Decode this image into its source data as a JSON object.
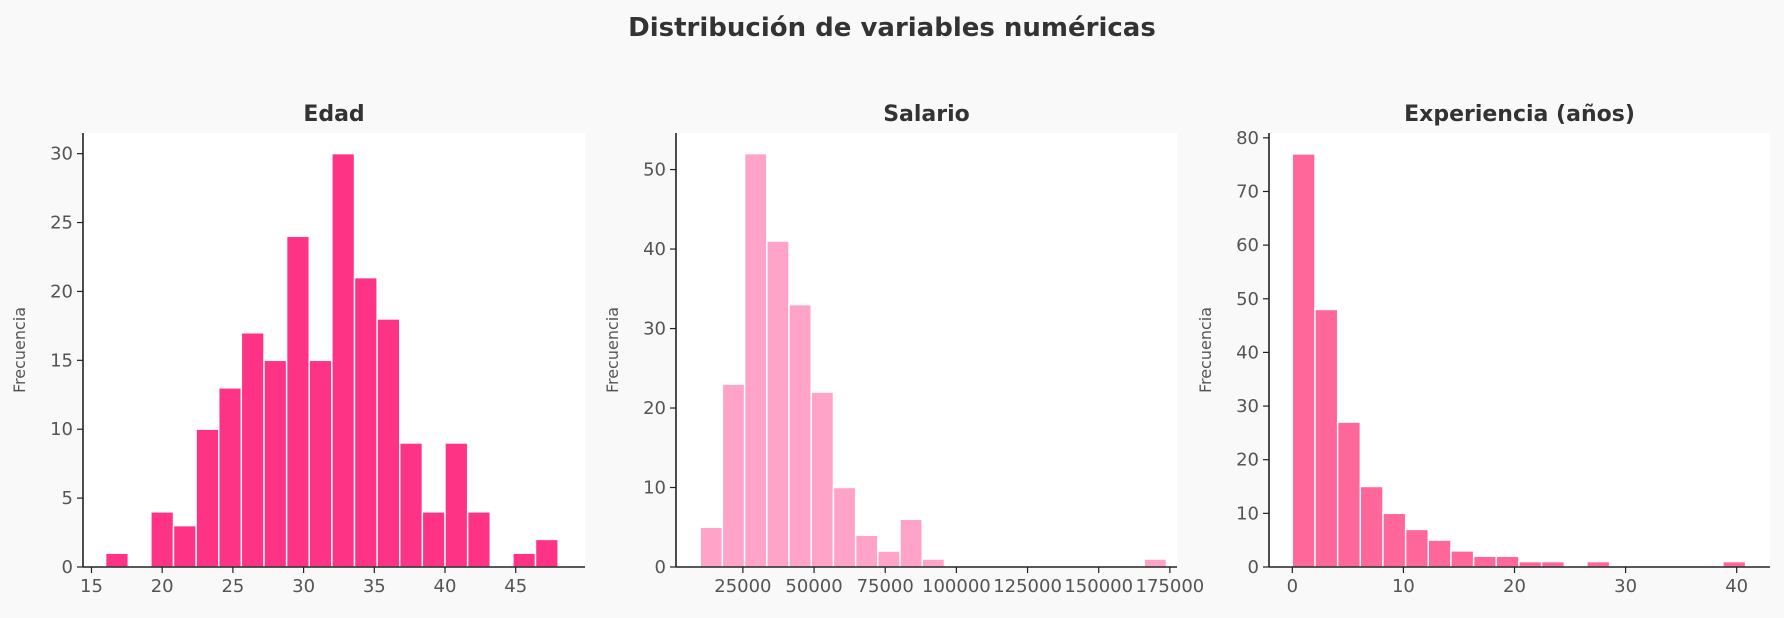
{
  "figure": {
    "title": "Distribución de variables numéricas",
    "background": "#f9f9f9"
  },
  "chart_data": [
    {
      "type": "bar",
      "title": "Edad",
      "xlabel": "",
      "ylabel": "Frecuencia",
      "color": "#ff3385",
      "xlim": [
        14.4,
        49.9
      ],
      "ylim": [
        0,
        31.5
      ],
      "xticks": [
        15,
        20,
        25,
        30,
        35,
        40,
        45
      ],
      "yticks": [
        0,
        5,
        10,
        15,
        20,
        25,
        30
      ],
      "bin_edges": [
        16.0,
        17.6,
        19.2,
        20.8,
        22.4,
        24.0,
        25.6,
        27.2,
        28.8,
        30.4,
        32.0,
        33.6,
        35.2,
        36.8,
        38.4,
        40.0,
        41.6,
        43.2,
        44.8,
        46.4,
        48.0
      ],
      "values": [
        1,
        0,
        4,
        3,
        10,
        13,
        17,
        15,
        24,
        15,
        30,
        21,
        18,
        9,
        4,
        9,
        4,
        0,
        1,
        2
      ]
    },
    {
      "type": "bar",
      "title": "Salario",
      "xlabel": "",
      "ylabel": "Frecuencia",
      "color": "#ffa3c8",
      "xlim": [
        1500,
        177500
      ],
      "ylim": [
        0,
        54.6
      ],
      "xticks": [
        25000,
        50000,
        75000,
        100000,
        125000,
        150000,
        175000
      ],
      "yticks": [
        0,
        10,
        20,
        30,
        40,
        50
      ],
      "bin_edges": [
        10000,
        17800,
        25600,
        33400,
        41200,
        49000,
        56800,
        64600,
        72400,
        80200,
        88000,
        95800,
        103600,
        111400,
        119200,
        127000,
        134800,
        142600,
        150400,
        158200,
        166000,
        173800
      ],
      "values": [
        5,
        23,
        52,
        41,
        33,
        22,
        10,
        4,
        2,
        6,
        1,
        0,
        0,
        0,
        0,
        0,
        0,
        0,
        0,
        0,
        1
      ]
    },
    {
      "type": "bar",
      "title": "Experiencia (años)",
      "xlabel": "",
      "ylabel": "Frecuencia",
      "color": "#ff6699",
      "xlim": [
        -2.1,
        43.0
      ],
      "ylim": [
        0,
        80.9
      ],
      "xticks": [
        0,
        10,
        20,
        30,
        40
      ],
      "yticks": [
        0,
        10,
        20,
        30,
        40,
        50,
        60,
        70,
        80
      ],
      "bin_edges": [
        0.0,
        2.04,
        4.08,
        6.12,
        8.16,
        10.2,
        12.24,
        14.28,
        16.32,
        18.36,
        20.4,
        22.44,
        24.48,
        26.52,
        28.56,
        30.6,
        32.64,
        34.68,
        36.72,
        38.76,
        40.8
      ],
      "values": [
        77,
        48,
        27,
        15,
        10,
        7,
        5,
        3,
        2,
        2,
        1,
        1,
        0,
        1,
        0,
        0,
        0,
        0,
        0,
        1
      ]
    }
  ]
}
